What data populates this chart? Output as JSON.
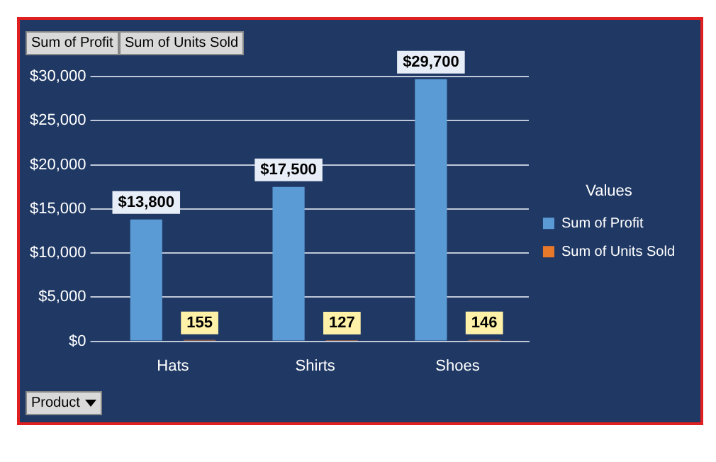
{
  "chart_data": {
    "type": "bar",
    "categories": [
      "Hats",
      "Shirts",
      "Shoes"
    ],
    "series": [
      {
        "name": "Sum of Profit",
        "color": "#5b9bd5",
        "values": [
          13800,
          17500,
          29700
        ],
        "value_labels": [
          "$13,800",
          "$17,500",
          "$29,700"
        ]
      },
      {
        "name": "Sum of Units Sold",
        "color": "#e8792a",
        "values": [
          155,
          127,
          146
        ],
        "value_labels": [
          "155",
          "127",
          "146"
        ]
      }
    ],
    "ylim": [
      0,
      30000
    ],
    "yticks": [
      {
        "value": 0,
        "label": "$0"
      },
      {
        "value": 5000,
        "label": "$5,000"
      },
      {
        "value": 10000,
        "label": "$10,000"
      },
      {
        "value": 15000,
        "label": "$15,000"
      },
      {
        "value": 20000,
        "label": "$20,000"
      },
      {
        "value": 25000,
        "label": "$25,000"
      },
      {
        "value": 30000,
        "label": "$30,000"
      }
    ],
    "grid": "y",
    "legend": "right",
    "legend_title": "Values",
    "annotations": [
      "Sum of Profit",
      "Sum of Units Sold",
      "Product"
    ]
  }
}
